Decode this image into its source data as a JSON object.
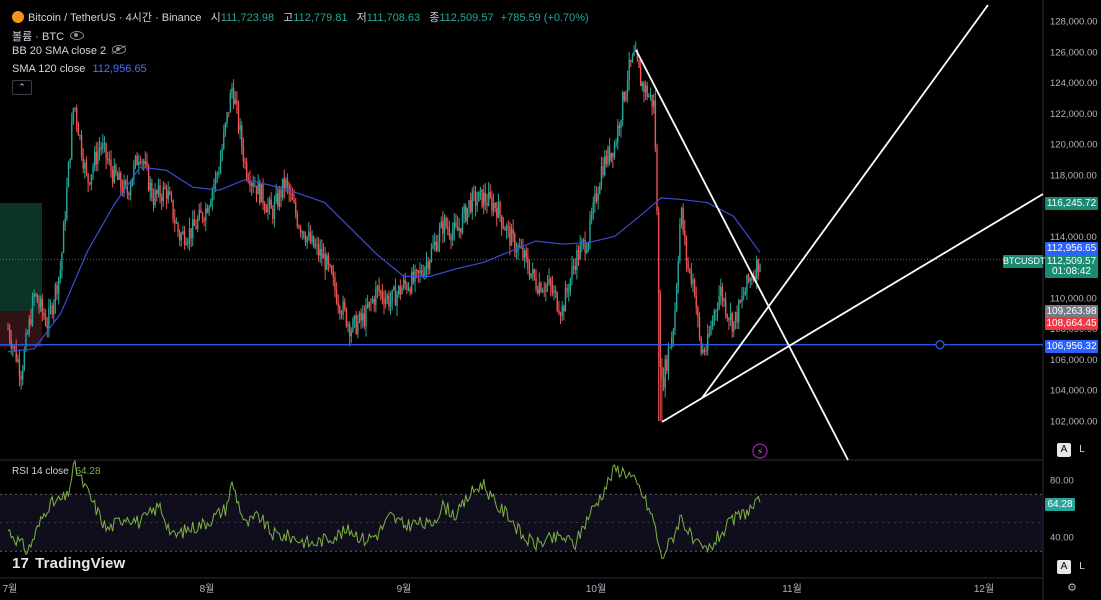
{
  "header": {
    "title": "Bitcoin / TetherUS · 4시간 · Binance",
    "open_label": "시",
    "open": "111,723.98",
    "high_label": "고",
    "high": "112,779.81",
    "low_label": "저",
    "low": "111,708.63",
    "close_label": "종",
    "close": "112,509.57",
    "change": "+785.59 (+0.70%)",
    "volume_label": "볼륨 · BTC",
    "bb_label": "BB 20 SMA close 2",
    "sma_label": "SMA 120 close",
    "sma_value": "112,956.65"
  },
  "rsi": {
    "label": "RSI 14 close",
    "value": "64.28"
  },
  "price_badges": {
    "b1": "116,245.72",
    "b2": "112,956.65",
    "b3": "112,509.57",
    "b4": "01:08:42",
    "b5": "109,263.98",
    "b6": "108,664.45",
    "b7": "106,956.32",
    "ticker": "BTCUSDT"
  },
  "buttons": {
    "auto": "A",
    "log": "L"
  },
  "brand": {
    "name": "TradingView",
    "mark": "17"
  },
  "colors": {
    "up": "#26a69a",
    "down": "#ef5350",
    "sma": "#3a4bd6",
    "hline": "#2962ff",
    "rsi": "#7cb342",
    "badge_green": "#1a8a72",
    "badge_blue": "#2962ff",
    "badge_red": "#f23645",
    "badge_gray": "#787b86"
  },
  "chart_data": [
    {
      "type": "candlestick",
      "ylim": [
        101000,
        129000
      ],
      "x_ticks": [
        "7월",
        "8월",
        "9월",
        "10월",
        "11월",
        "12월"
      ],
      "y_ticks": [
        "128,000.00",
        "126,000.00",
        "124,000.00",
        "122,000.00",
        "120,000.00",
        "118,000.00",
        "116,000.00",
        "114,000.00",
        "112,000.00",
        "110,000.00",
        "108,000.00",
        "106,000.00",
        "104,000.00",
        "102,000.00"
      ],
      "close_path": [
        [
          0,
          108000
        ],
        [
          2,
          105200
        ],
        [
          4,
          110200
        ],
        [
          6,
          108300
        ],
        [
          8,
          112000
        ],
        [
          10,
          122800
        ],
        [
          12,
          117500
        ],
        [
          14,
          120000
        ],
        [
          16,
          118000
        ],
        [
          18,
          116800
        ],
        [
          20,
          119600
        ],
        [
          22,
          116500
        ],
        [
          24,
          117000
        ],
        [
          26,
          114000
        ],
        [
          28,
          114400
        ],
        [
          30,
          115800
        ],
        [
          32,
          118500
        ],
        [
          34,
          123800
        ],
        [
          36,
          118500
        ],
        [
          38,
          117000
        ],
        [
          40,
          115500
        ],
        [
          42,
          117500
        ],
        [
          44,
          115000
        ],
        [
          46,
          113500
        ],
        [
          48,
          112500
        ],
        [
          50,
          110000
        ],
        [
          52,
          108000
        ],
        [
          54,
          108700
        ],
        [
          56,
          110500
        ],
        [
          58,
          109800
        ],
        [
          60,
          110800
        ],
        [
          62,
          111200
        ],
        [
          64,
          112800
        ],
        [
          66,
          114800
        ],
        [
          68,
          114200
        ],
        [
          70,
          116200
        ],
        [
          72,
          116500
        ],
        [
          74,
          116000
        ],
        [
          76,
          114000
        ],
        [
          78,
          112800
        ],
        [
          80,
          111000
        ],
        [
          82,
          110800
        ],
        [
          84,
          109200
        ],
        [
          86,
          112500
        ],
        [
          88,
          114000
        ],
        [
          90,
          118500
        ],
        [
          92,
          120000
        ],
        [
          94,
          124600
        ],
        [
          95,
          125700
        ],
        [
          96,
          124000
        ],
        [
          98,
          122500
        ],
        [
          99,
          104000
        ],
        [
          101,
          108500
        ],
        [
          102,
          115800
        ],
        [
          103,
          112000
        ],
        [
          104,
          111000
        ],
        [
          105,
          106500
        ],
        [
          106,
          106800
        ],
        [
          107,
          109000
        ],
        [
          108,
          110500
        ],
        [
          109,
          109200
        ],
        [
          110,
          108300
        ],
        [
          111,
          109500
        ],
        [
          112,
          110800
        ],
        [
          113,
          111700
        ],
        [
          114,
          112509
        ]
      ],
      "sma120": [
        [
          0,
          106500
        ],
        [
          4,
          106700
        ],
        [
          8,
          109000
        ],
        [
          12,
          113000
        ],
        [
          16,
          116000
        ],
        [
          20,
          118500
        ],
        [
          24,
          118300
        ],
        [
          28,
          117200
        ],
        [
          32,
          117000
        ],
        [
          36,
          117700
        ],
        [
          40,
          117300
        ],
        [
          44,
          116800
        ],
        [
          48,
          116200
        ],
        [
          52,
          114500
        ],
        [
          56,
          112800
        ],
        [
          60,
          111400
        ],
        [
          64,
          111400
        ],
        [
          68,
          111900
        ],
        [
          72,
          112300
        ],
        [
          76,
          113000
        ],
        [
          80,
          113700
        ],
        [
          84,
          113500
        ],
        [
          88,
          113600
        ],
        [
          92,
          114000
        ],
        [
          96,
          115400
        ],
        [
          99,
          116500
        ],
        [
          102,
          116400
        ],
        [
          106,
          116200
        ],
        [
          110,
          115300
        ],
        [
          114,
          112956
        ]
      ],
      "horizontal_level": 106956.32,
      "trendlines": [
        {
          "from": [
            636,
            50
          ],
          "to": [
            848,
            460
          ]
        },
        {
          "from": [
            662,
            422
          ],
          "to": [
            1043,
            194
          ]
        },
        {
          "from": [
            702,
            398
          ],
          "to": [
            988,
            5
          ]
        }
      ]
    },
    {
      "type": "line",
      "name": "RSI 14 close",
      "ylim": [
        20,
        100
      ],
      "y_ticks": [
        "80.00",
        "40.00"
      ],
      "bands": [
        70,
        30
      ],
      "values": [
        [
          0,
          45
        ],
        [
          3,
          30
        ],
        [
          6,
          62
        ],
        [
          9,
          68
        ],
        [
          10,
          90
        ],
        [
          12,
          72
        ],
        [
          15,
          45
        ],
        [
          18,
          55
        ],
        [
          20,
          50
        ],
        [
          23,
          62
        ],
        [
          25,
          40
        ],
        [
          27,
          45
        ],
        [
          30,
          50
        ],
        [
          33,
          60
        ],
        [
          34,
          78
        ],
        [
          36,
          48
        ],
        [
          38,
          55
        ],
        [
          40,
          42
        ],
        [
          43,
          40
        ],
        [
          46,
          35
        ],
        [
          49,
          40
        ],
        [
          52,
          45
        ],
        [
          54,
          38
        ],
        [
          56,
          42
        ],
        [
          58,
          55
        ],
        [
          60,
          48
        ],
        [
          62,
          50
        ],
        [
          64,
          48
        ],
        [
          66,
          62
        ],
        [
          68,
          55
        ],
        [
          70,
          70
        ],
        [
          72,
          78
        ],
        [
          74,
          62
        ],
        [
          76,
          55
        ],
        [
          78,
          40
        ],
        [
          80,
          35
        ],
        [
          82,
          38
        ],
        [
          84,
          40
        ],
        [
          86,
          35
        ],
        [
          88,
          55
        ],
        [
          90,
          70
        ],
        [
          92,
          88
        ],
        [
          94,
          85
        ],
        [
          96,
          72
        ],
        [
          98,
          50
        ],
        [
          99,
          25
        ],
        [
          101,
          42
        ],
        [
          102,
          55
        ],
        [
          104,
          35
        ],
        [
          106,
          30
        ],
        [
          108,
          42
        ],
        [
          110,
          52
        ],
        [
          112,
          58
        ],
        [
          114,
          64.28
        ]
      ]
    }
  ]
}
